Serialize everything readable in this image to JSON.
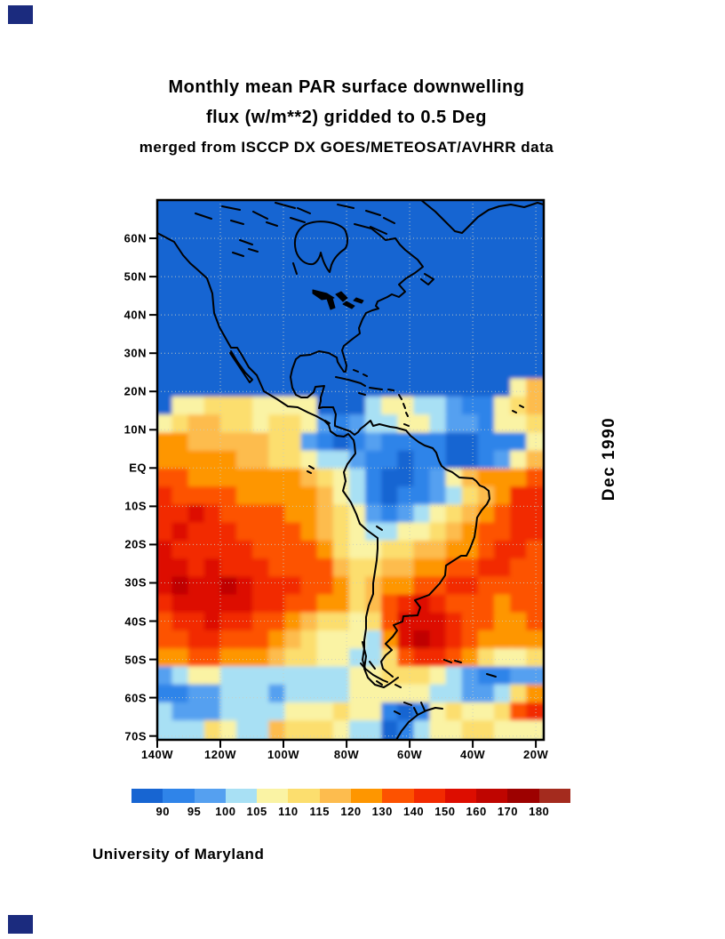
{
  "page": {
    "title_line1": "Monthly mean PAR surface downwelling",
    "title_line2": "flux (w/m**2) gridded to 0.5 Deg",
    "title_line3": "merged from ISCCP DX GOES/METEOSAT/AVHRR data",
    "side_date": "Dec 1990",
    "credit": "University of Maryland",
    "corner_mark_color": "#1B2B7E",
    "background_color": "#FFFFFF"
  },
  "chart_data": {
    "type": "heatmap",
    "title": "Monthly mean PAR surface downwelling flux (w/m**2) gridded to 0.5 Deg",
    "subtitle": "merged from ISCCP DX GOES/METEOSAT/AVHRR data",
    "time_label": "Dec 1990",
    "units": "w/m**2",
    "source_note": "merged from ISCCP DX GOES/METEOSAT/AVHRR data",
    "credit": "University of Maryland",
    "lon_range_west_deg": [
      140,
      17.5
    ],
    "lat_range_deg": [
      -71,
      70
    ],
    "grid_on": true,
    "legend_position": "bottom",
    "lat_ticks": [
      {
        "label": "60N",
        "lat": 60
      },
      {
        "label": "50N",
        "lat": 50
      },
      {
        "label": "40N",
        "lat": 40
      },
      {
        "label": "30N",
        "lat": 30
      },
      {
        "label": "20N",
        "lat": 20
      },
      {
        "label": "10N",
        "lat": 10
      },
      {
        "label": "EQ",
        "lat": 0
      },
      {
        "label": "10S",
        "lat": -10
      },
      {
        "label": "20S",
        "lat": -20
      },
      {
        "label": "30S",
        "lat": -30
      },
      {
        "label": "40S",
        "lat": -40
      },
      {
        "label": "50S",
        "lat": -50
      },
      {
        "label": "60S",
        "lat": -60
      },
      {
        "label": "70S",
        "lat": -70
      }
    ],
    "lon_ticks": [
      {
        "label": "140W",
        "lon": 140
      },
      {
        "label": "120W",
        "lon": 120
      },
      {
        "label": "100W",
        "lon": 100
      },
      {
        "label": "80W",
        "lon": 80
      },
      {
        "label": "60W",
        "lon": 60
      },
      {
        "label": "40W",
        "lon": 40
      },
      {
        "label": "20W",
        "lon": 20
      }
    ],
    "colorbar": {
      "boundary_labels": [
        "90",
        "95",
        "100",
        "105",
        "110",
        "115",
        "120",
        "130",
        "140",
        "150",
        "160",
        "170",
        "180"
      ],
      "colors": [
        "#1765D2",
        "#2F84E9",
        "#55A0F0",
        "#A8E0F4",
        "#FAF3A4",
        "#FCDE6E",
        "#FDBC4E",
        "#FE9600",
        "#FD5200",
        "#F22A00",
        "#DD0D00",
        "#BF0500",
        "#9D0100",
        "#A42B1E"
      ]
    },
    "grid_encoding": "each row string = 24 cells west-to-east, top row = 70N; char 0-9,a-d indexes colorbar.colors",
    "grid_rows": 30,
    "grid_cols": 24,
    "grid": [
      "000000000000000000000000",
      "000000000000000000000000",
      "000000000000000000000000",
      "000000000000000000000000",
      "000000000000000000000000",
      "000000000000000000000000",
      "000000000000000000000000",
      "000000000000000000000000",
      "000000000000000000000000",
      "000000000000000000000000",
      "000000000000000000000046",
      "044555444400034433211456",
      "456655455421233443221445",
      "776666655210121111001114",
      "777776655433211011001246",
      "887777777654310012467778",
      "988887777764310112356799",
      "99a988887765421234567899",
      "9a9998888765433445678899",
      "a99999888875445566778998",
      "aa9a99988886556677889988",
      "abaaba999887567788998888",
      "9aaaaa9988775689a9888788",
      "899a99887655458aaa988778",
      "889988876544437aba987777",
      "778877765544335899875445",
      "234433333333445554321122",
      "112233323333444443322357",
      "322233334445441014544589",
      "333543365554330134455444"
    ],
    "gridline_lats": [
      60,
      50,
      40,
      30,
      20,
      10,
      0,
      -10,
      -20,
      -30,
      -40,
      -50,
      -60,
      -70
    ],
    "gridline_lons": [
      140,
      120,
      100,
      80,
      60,
      40,
      20
    ],
    "gridline_color": "#C9CEC2",
    "coastline_color": "#000000",
    "coastlines": {
      "stroke_paths": [
        "M0,37 L19,47 L29,62 L37,71 L45,78 L56,88 L62,105 L64,127 L70,143 L79,159 L83,166 L90,166 L95,174 L103,188 L112,197 L120,215 L135,224 L147,232 L158,233 L170,239 L179,243 L188,248 L193,253 L195,260 L202,265 L210,266 L215,263 L221,270 L222,275 L223,285 L214,297 L210,306 L212,316 L209,327 L218,340 L224,353 L228,364 L237,372 L248,380 L248,392 L247,405 L245,418 L243,431 L243,443 L238,456 L235,469 L235,482 L233,495 L233,504 L231,517 L234,527 L243,534 L254,540 L259,542",
        "M83,170 L91,183 L99,194 L107,202 L104,205 L96,193 L88,181 L82,172",
        "M265,536 L254,527 L252,519 L257,512 L264,506 L257,499 L265,491 L270,484 L266,478 L276,474 L277,468 L293,467 L296,458 L290,450 L306,444 L318,431 L324,422 L325,411 L342,400 L348,400 L352,392 L357,379 L359,366 L360,357 L365,349 L371,342 L374,336 L373,327 L368,323 L363,321 L359,316 L355,313 L340,312 L332,306 L325,303 L320,299 L317,293 L314,284 L310,279 L301,276 L294,272 L285,265 L280,259 L269,256 L262,255 L250,252 L243,254 L240,248 L233,254 L229,257 L226,261 L222,264 L217,260",
        "M217,260 L200,254 L200,250 L201,241 L198,233 L186,233 L182,234 L184,226 L184,222 L188,209 L178,210 L176,216 L169,222 L162,222 L156,219 L152,211 L150,199 L152,190 L156,179 L161,175 L172,174 L182,170 L193,172 L202,177 L203,182 L206,187 L210,193 L212,193 L213,186 L211,179 L208,169 L210,164 L220,156 L228,150 L227,144 L231,134 L235,127 L242,124 L249,122 L246,119 L248,114 L259,109 L264,106 L272,109 L279,103 L272,95 L280,88 L290,82 L299,75 L293,67 L279,56 L273,50 L268,43 L257,45 L250,39 L241,32 L222,27",
        "M168,27 C156,33 153,45 156,57 C159,67 167,73 175,72 C179,71 183,65 184,59 C186,67 189,75 194,81 L196,73 C199,65 205,59 211,55 C215,51 215,41 211,33 C203,25 183,21 168,27 Z",
        "M297,0 L313,13 L325,25 L335,35 L343,37 L351,29 L361,19 L373,11 L385,7 L398,5 L413,8 L428,3 L435,5",
        "M201,199 L215,202 L229,206 L234,209 M239,211 L253,213 M260,213 l6,1 M227,217 l7,2 M221,191 l5,2 M232,196 l4,2 M272,219 l3,5 M277,229 l2,5 M280,239 l2,4 M278,252 l5,2",
        "M408,231 l4,2 M400,237 l4,2",
        "M171,299 l5,3 M169,305 l4,2",
        "M231,497 L235,513 L233,527 L237,537 L245,545 L255,548 L263,543 L271,537 M239,519 l6,8 M229,521 l5,6 M247,541 l6,4 M268,545 l6,3",
        "M323,517 l8,3 M335,518 l7,2",
        "M371,533 l10,3",
        "M269,607 L275,597 L283,587 L293,579 L303,574 L313,571 L321,572 M293,579 L289,571 M301,574 L297,565 M278,565 l8,3 M267,575 l6,3",
        "M247,367 l6,4 M189,248 l5,3 M153,71 l4,12 M93,45 l14,5 M85,59 l12,4 M103,55 l10,3",
        "M43,15 l18,6 M73,7 l20,4 M108,13 l16,8 M133,3 l22,6 M158,9 l14,6 M203,5 l18,4 M123,25 l12,4 M83,23 l14,4 M235,12 l16,5 M255,20 l12,6 M240,30 l18,8 M150,20 l16,5 M301,83 l10,6 l-6,6 l-8,-6"
      ],
      "fill_paths": [
        "M175,101 l16,4 l8,5 l-14,2 l-10,-7 z",
        "M191,111 l4,12 l5,-2 l-3,-11 z",
        "M201,106 l8,8 l5,-4 l-7,-7 z",
        "M209,117 l10,5 l3,-3 l-9,-5 z",
        "M221,113 l9,3 l2,-3 l-8,-3 z"
      ]
    }
  }
}
